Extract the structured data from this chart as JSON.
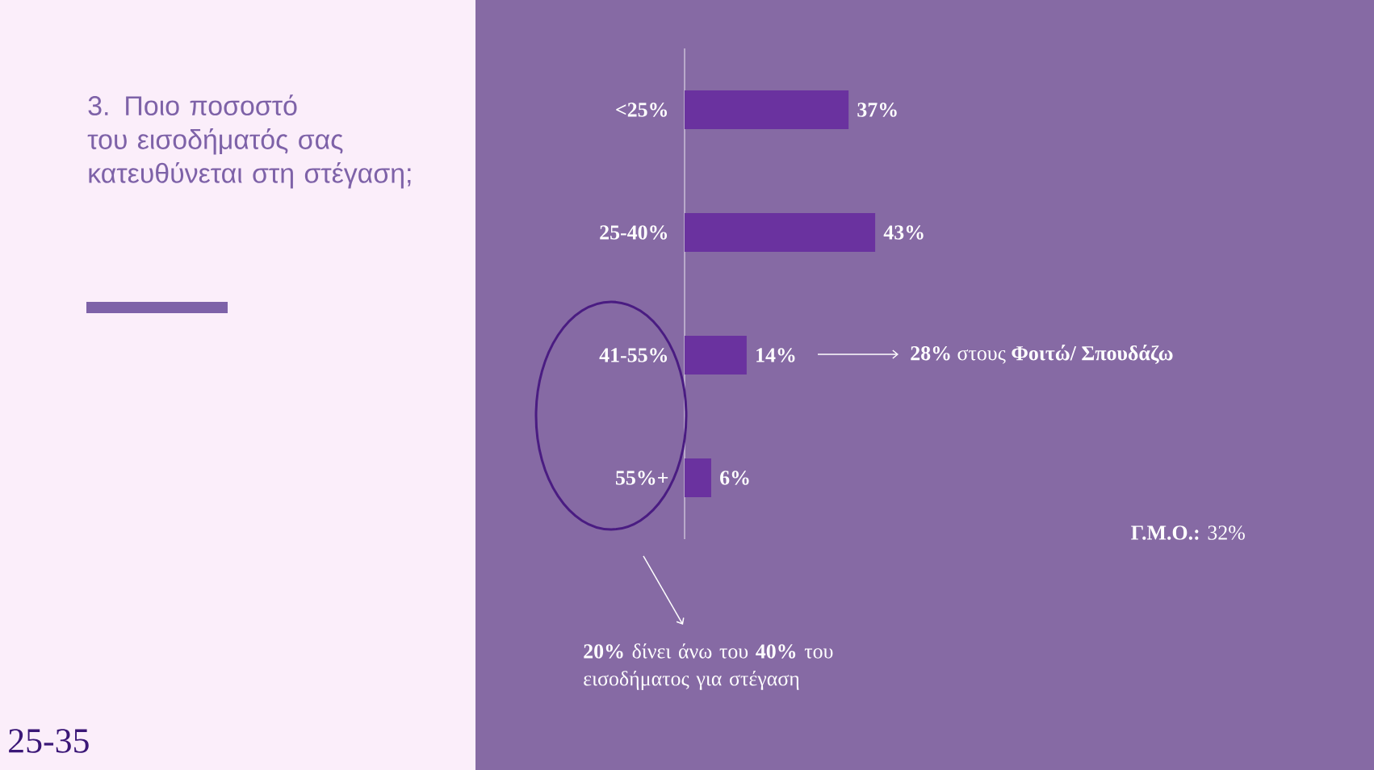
{
  "chart_data": {
    "type": "bar",
    "orientation": "horizontal",
    "title": "3. Ποιο ποσοστό του εισοδήματός σας κατευθύνεται στη στέγαση;",
    "categories": [
      "<25%",
      "25-40%",
      "41-55%",
      "55%+"
    ],
    "values": [
      37,
      43,
      14,
      6
    ],
    "value_labels": [
      "37%",
      "43%",
      "14%",
      "6%"
    ],
    "color": "#6a329f",
    "tick_labels": "y",
    "annotations": [
      "**28%** στους **Φοιτώ/ Σπουδάζω**",
      "**Γ.Μ.Ο.:** 32%",
      "**20%** δίνει άνω του **40%** του εισοδήματος για στέγαση",
      "25-35"
    ]
  }
}
